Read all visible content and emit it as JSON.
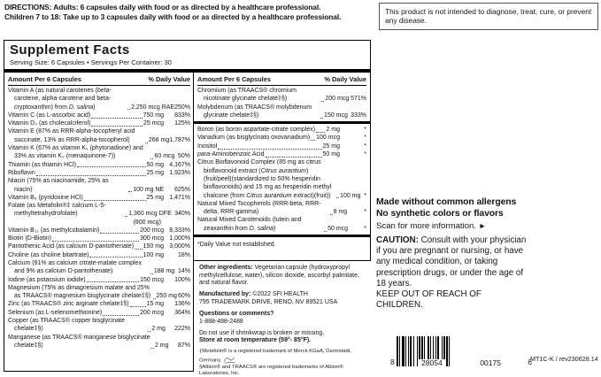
{
  "directions": {
    "line1": "DIRECTIONS: Adults: 6 capsules daily with food or as directed by a healthcare professional.",
    "line2": "Children 7 to 18: Take up to 3 capsules daily with food or as directed by a healthcare professional."
  },
  "disclaimer": "This product is not intended to diagnose, treat, cure, or prevent any disease.",
  "supplement_facts": {
    "title": "Supplement Facts",
    "serving_line": "Serving Size: 6 Capsules • Servings Per Container: 30",
    "col_header_amount": "Amount Per 6 Capsules",
    "col_header_dv": "% Daily Value",
    "left_rows": [
      {
        "name": "Vitamin A (as natural carotenes (beta-carotene, alpha-carotene and beta-cryptoxanthin) from D. salina)",
        "amount": "2,250 mcg RAE",
        "dv": "250%"
      },
      {
        "name": "Vitamin C (as L-ascorbic acid)",
        "amount": "750 mg",
        "dv": "833%"
      },
      {
        "name": "Vitamin D₃ (as cholecalciferol)",
        "amount": "25 mcg",
        "dv": "125%"
      },
      {
        "name": "Vitamin E (87% as RRR-alpha-tocopheryl acid succinate, 13% as RRR-alpha-tocopherol)",
        "amount": "268 mg",
        "dv": "1,787%"
      },
      {
        "name": "Vitamin K (67% as vitamin K₁ (phytonadione) and 33% as vitamin K₂ (menaquinone-7))",
        "amount": "60 mcg",
        "dv": "50%"
      },
      {
        "name": "Thiamin (as thiamin HCl)",
        "amount": "50 mg",
        "dv": "4,167%"
      },
      {
        "name": "Riboflavin",
        "amount": "25 mg",
        "dv": "1,923%"
      },
      {
        "name": "Niacin (75% as niacinamide, 25% as niacin)",
        "amount": "100 mg NE",
        "dv": "625%"
      },
      {
        "name": "Vitamin B₆ (pyridoxine HCl)",
        "amount": "25 mg",
        "dv": "1,471%"
      },
      {
        "name": "Folate (as Metafolin®‡ calcium L-5-methyltetrahydrofolate)",
        "amount": "1,360 mcg DFE",
        "dv": "340%",
        "note": "(800 mcg)"
      },
      {
        "name": "Vitamin B₁₂ (as methylcobalamin)",
        "amount": "200 mcg",
        "dv": "8,333%"
      },
      {
        "name": "Biotin (D-Biotin)",
        "amount": "300 mcg",
        "dv": "1,000%"
      },
      {
        "name": "Pantothenic Acid (as calcium D-pantothenate)",
        "amount": "150 mg",
        "dv": "3,000%"
      },
      {
        "name": "Choline (as choline bitartrate)",
        "amount": "100 mg",
        "dv": "18%"
      },
      {
        "name": "Calcium (91% as calcium citrate-malate complex and 9% as calcium D-pantothenate)",
        "amount": "188 mg",
        "dv": "14%"
      },
      {
        "name": "Iodine (as potassium iodide)",
        "amount": "150 mcg",
        "dv": "100%"
      },
      {
        "name": "Magnesium (75% as dimagnesium malate and 25% as TRAACS® magnesium bisglycinate chelate‡§)",
        "amount": "250 mg",
        "dv": "60%"
      },
      {
        "name": "Zinc (as TRAACS® zinc arginate chelate‡§)",
        "amount": "15 mg",
        "dv": "136%"
      },
      {
        "name": "Selenium (as L-selenomethionine)",
        "amount": "200 mcg",
        "dv": "364%"
      },
      {
        "name": "Copper (as TRAACS® copper bisglycinate chelate‡§)",
        "amount": "2 mg",
        "dv": "222%"
      },
      {
        "name": "Manganese (as TRAACS® manganese bisglycinate chelate‡§)",
        "amount": "2 mg",
        "dv": "87%"
      }
    ],
    "right_rows_group1": [
      {
        "name": "Chromium (as TRAACS® chromium nicotinate glycinate chelate‡§)",
        "amount": "200 mcg",
        "dv": "571%"
      },
      {
        "name": "Molybdenum (as TRAACS® molybdenum glycinate chelate‡§)",
        "amount": "150 mcg",
        "dv": "333%"
      }
    ],
    "right_rows_group2": [
      {
        "name": "Boron (as boron aspartate-citrate complex)",
        "amount": "2 mg",
        "dv": "*"
      },
      {
        "name": "Vanadium (as bisglycinato oxovanadium)",
        "amount": "100 mcg",
        "dv": "*"
      },
      {
        "name": "Inositol",
        "amount": "25 mg",
        "dv": "*"
      },
      {
        "name": "para-Aminobenzoic Acid",
        "amount": "50 mg",
        "dv": "*"
      },
      {
        "name": "Citrus Bioflavonoid Complex (85 mg as citrus bioflavonoid extract (Citrus aurantium) (fruit/peel)(standardized to 50% hesperidin bioflavonoids) and 15 mg as hesperidin methyl chalcone (from Citrus aurantium extract)(fruit))",
        "amount": "100 mg",
        "dv": "*"
      },
      {
        "name": "Natural Mixed Tocopherols (RRR-beta, RRR-delta, RRR-gamma)",
        "amount": "8 mg",
        "dv": "*"
      },
      {
        "name": "Natural Mixed Carotenoids (lutein and zeaxanthin from D. salina)",
        "amount": "50 mcg",
        "dv": "*"
      }
    ],
    "dv_footnote": "*Daily Value not established."
  },
  "info": {
    "other_ingredients_label": "Other ingredients:",
    "other_ingredients": "Vegetarian capsule (hydroxypropyl methylcellulose, water), silicon dioxide, ascorbyl palmitate, and natural flavor.",
    "manufactured_label": "Manufactured by:",
    "manufactured_value": "©2022 SFI HEALTH",
    "manufactured_address": "795 TRADEMARK DRIVE, RENO, NV 89521 USA",
    "questions_label": "Questions or comments?",
    "phone": "1-888-488-2488",
    "shrinkwrap": "Do not use if shrinkwrap is broken or missing.",
    "storage": "Store at room temperature (59°- 85°F).",
    "footnote1": "‡Metafolin® is a registered trademark of Merck KGaA, Darmstadt, Germany.",
    "footnote2": "§Albion® and TRAACS® are registered trademarks of Albion® Laboratories, Inc."
  },
  "right_panel": {
    "allergen_line1": "Made without common allergens",
    "allergen_line2": "No synthetic colors or flavors",
    "scan_text": "Scan for more information.",
    "arrow_glyph": "►",
    "caution_label": "CAUTION:",
    "caution_text": " Consult with your physician if you are pregnant or nursing, or have any medical condition, or taking prescription drugs, or under the age of 18 years.",
    "keep_out": "KEEP OUT OF REACH OF CHILDREN.",
    "barcode": {
      "lead": "8",
      "group1": "28054",
      "group2": "00175",
      "trail": "6"
    },
    "product_code": "MT1C-K / rev230628.14"
  },
  "colors": {
    "ink": "#161616",
    "bar": "#000000"
  }
}
